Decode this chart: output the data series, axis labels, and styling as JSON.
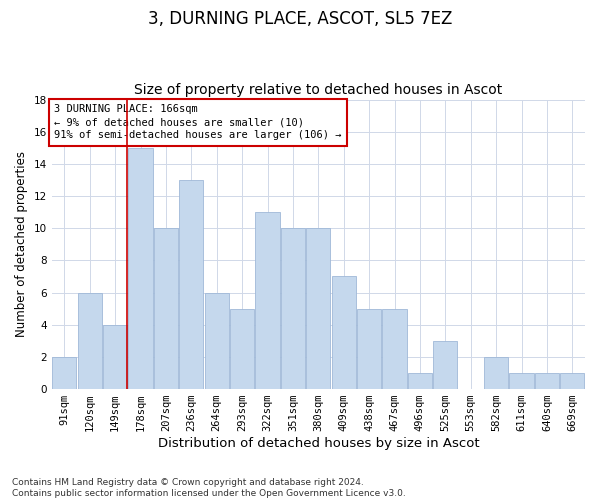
{
  "title": "3, DURNING PLACE, ASCOT, SL5 7EZ",
  "subtitle": "Size of property relative to detached houses in Ascot",
  "xlabel": "Distribution of detached houses by size in Ascot",
  "ylabel": "Number of detached properties",
  "categories": [
    "91sqm",
    "120sqm",
    "149sqm",
    "178sqm",
    "207sqm",
    "236sqm",
    "264sqm",
    "293sqm",
    "322sqm",
    "351sqm",
    "380sqm",
    "409sqm",
    "438sqm",
    "467sqm",
    "496sqm",
    "525sqm",
    "553sqm",
    "582sqm",
    "611sqm",
    "640sqm",
    "669sqm"
  ],
  "values": [
    2,
    6,
    4,
    15,
    10,
    13,
    6,
    5,
    11,
    10,
    10,
    7,
    5,
    5,
    1,
    3,
    0,
    2,
    1,
    1,
    1
  ],
  "bar_color": "#c5d8ed",
  "bar_edge_color": "#a0b8d8",
  "grid_color": "#d0d8e8",
  "background_color": "#ffffff",
  "vline_x": 2.475,
  "annotation_title": "3 DURNING PLACE: 166sqm",
  "annotation_line1": "← 9% of detached houses are smaller (10)",
  "annotation_line2": "91% of semi-detached houses are larger (106) →",
  "annotation_box_color": "#ffffff",
  "annotation_border_color": "#cc0000",
  "vline_color": "#cc0000",
  "ylim": [
    0,
    18
  ],
  "yticks": [
    0,
    2,
    4,
    6,
    8,
    10,
    12,
    14,
    16,
    18
  ],
  "footer_line1": "Contains HM Land Registry data © Crown copyright and database right 2024.",
  "footer_line2": "Contains public sector information licensed under the Open Government Licence v3.0.",
  "title_fontsize": 12,
  "subtitle_fontsize": 10,
  "xlabel_fontsize": 9.5,
  "ylabel_fontsize": 8.5,
  "tick_fontsize": 7.5,
  "annotation_fontsize": 7.5,
  "footer_fontsize": 6.5
}
